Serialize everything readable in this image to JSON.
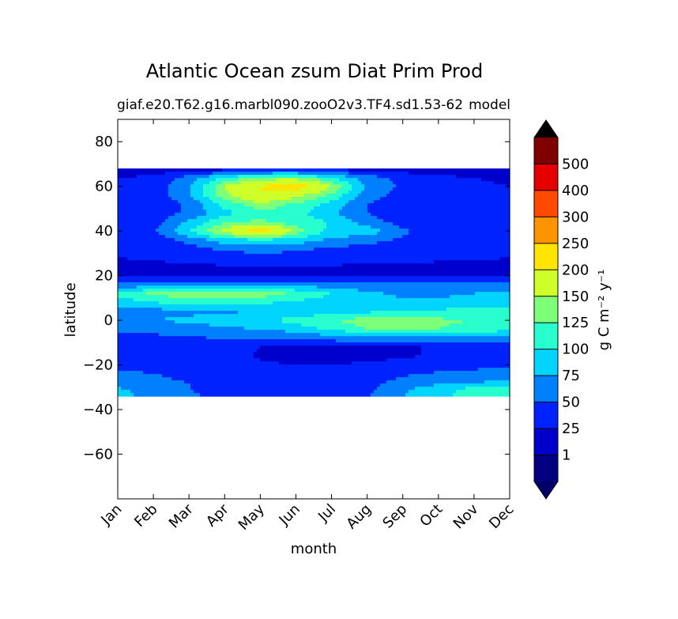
{
  "chart_data": {
    "type": "heatmap",
    "title": "Atlantic Ocean zsum Diat Prim Prod",
    "subtitle_left": "giaf.e20.T62.g16.marbl090.zooO2v3.TF4.sd1.53-62",
    "subtitle_right": "model",
    "xlabel": "month",
    "ylabel": "latitude",
    "x_ticks": [
      "Jan",
      "Feb",
      "Mar",
      "Apr",
      "May",
      "Jun",
      "Jul",
      "Aug",
      "Sep",
      "Oct",
      "Nov",
      "Dec"
    ],
    "xlim": [
      0,
      11
    ],
    "ylim": [
      -80,
      90
    ],
    "y_ticks": [
      80,
      60,
      40,
      20,
      0,
      -20,
      -40,
      -60
    ],
    "y_tick_labels": [
      "80",
      "60",
      "40",
      "20",
      "0",
      "−20",
      "−40",
      "−60"
    ],
    "data_extent_lat": [
      -34,
      68
    ],
    "colorbar": {
      "label": "g C m⁻² y⁻¹",
      "extend": "both",
      "levels": [
        0,
        1,
        25,
        50,
        75,
        100,
        125,
        150,
        200,
        250,
        300,
        400,
        500,
        600
      ],
      "tick_labels": [
        "1",
        "25",
        "50",
        "75",
        "100",
        "125",
        "150",
        "200",
        "250",
        "300",
        "400",
        "500"
      ],
      "colors": [
        "#000080",
        "#0000cd",
        "#0022ff",
        "#0080ff",
        "#00d4ff",
        "#29ffce",
        "#7dff7a",
        "#ceff29",
        "#ffe500",
        "#ff9400",
        "#ff4a00",
        "#e40000",
        "#800000"
      ],
      "under_color": "#000066",
      "over_color": "#000000"
    },
    "field_lat": [
      68,
      64,
      60,
      56,
      52,
      48,
      44,
      40,
      36,
      32,
      28,
      24,
      20,
      16,
      12,
      8,
      4,
      0,
      -4,
      -8,
      -12,
      -16,
      -20,
      -24,
      -28,
      -31,
      -34
    ],
    "field_values": [
      [
        5,
        6,
        8,
        10,
        12,
        14,
        14,
        12,
        10,
        8,
        6,
        5
      ],
      [
        25,
        30,
        60,
        100,
        130,
        130,
        100,
        60,
        40,
        30,
        25,
        20
      ],
      [
        30,
        35,
        70,
        150,
        200,
        230,
        150,
        70,
        45,
        35,
        30,
        25
      ],
      [
        30,
        35,
        70,
        140,
        200,
        160,
        120,
        60,
        40,
        30,
        28,
        26
      ],
      [
        28,
        30,
        55,
        110,
        140,
        120,
        90,
        50,
        35,
        28,
        26,
        25
      ],
      [
        28,
        35,
        55,
        90,
        120,
        110,
        80,
        50,
        35,
        28,
        27,
        26
      ],
      [
        30,
        40,
        80,
        120,
        130,
        110,
        100,
        60,
        40,
        30,
        28,
        27
      ],
      [
        35,
        45,
        100,
        160,
        230,
        140,
        90,
        90,
        55,
        35,
        30,
        28
      ],
      [
        30,
        35,
        60,
        90,
        100,
        90,
        70,
        60,
        45,
        32,
        28,
        27
      ],
      [
        26,
        28,
        40,
        55,
        60,
        55,
        45,
        40,
        35,
        28,
        27,
        26
      ],
      [
        25,
        26,
        30,
        35,
        40,
        38,
        35,
        32,
        30,
        27,
        26,
        25
      ],
      [
        22,
        22,
        22,
        23,
        24,
        24,
        23,
        22,
        22,
        22,
        22,
        22
      ],
      [
        22,
        22,
        22,
        22,
        22,
        22,
        22,
        22,
        22,
        22,
        22,
        22
      ],
      [
        55,
        60,
        65,
        70,
        70,
        65,
        60,
        55,
        55,
        55,
        55,
        55
      ],
      [
        110,
        130,
        145,
        145,
        140,
        120,
        100,
        80,
        70,
        70,
        75,
        80
      ],
      [
        85,
        100,
        110,
        110,
        105,
        95,
        90,
        85,
        80,
        80,
        85,
        90
      ],
      [
        60,
        65,
        70,
        72,
        75,
        80,
        90,
        95,
        100,
        105,
        110,
        110
      ],
      [
        70,
        75,
        80,
        85,
        95,
        110,
        125,
        135,
        135,
        130,
        125,
        120
      ],
      [
        55,
        55,
        65,
        70,
        75,
        85,
        105,
        125,
        130,
        125,
        115,
        110
      ],
      [
        45,
        45,
        48,
        50,
        52,
        55,
        60,
        65,
        70,
        70,
        65,
        60
      ],
      [
        40,
        38,
        35,
        30,
        25,
        25,
        25,
        25,
        25,
        25,
        26,
        28
      ],
      [
        38,
        35,
        32,
        28,
        24,
        23,
        23,
        23,
        24,
        26,
        30,
        32
      ],
      [
        45,
        40,
        35,
        30,
        26,
        25,
        25,
        26,
        28,
        32,
        40,
        45
      ],
      [
        55,
        50,
        45,
        40,
        35,
        30,
        30,
        32,
        45,
        55,
        60,
        60
      ],
      [
        60,
        55,
        50,
        45,
        42,
        35,
        35,
        40,
        60,
        70,
        75,
        80
      ],
      [
        80,
        60,
        50,
        45,
        42,
        35,
        35,
        45,
        70,
        90,
        110,
        115
      ],
      [
        85,
        65,
        52,
        46,
        42,
        36,
        36,
        48,
        75,
        95,
        110,
        112
      ]
    ]
  }
}
